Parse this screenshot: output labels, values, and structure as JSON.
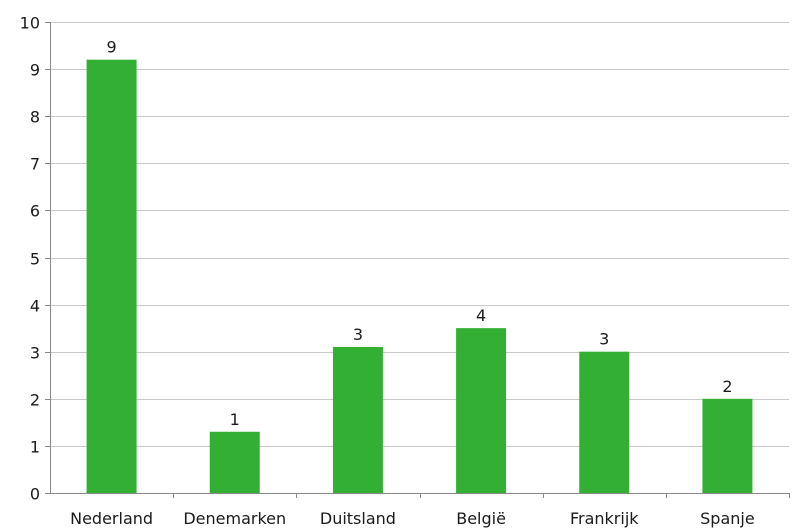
{
  "chart_data": {
    "type": "bar",
    "categories": [
      "Nederland",
      "Denemarken",
      "Duitsland",
      "België",
      "Frankrijk",
      "Spanje"
    ],
    "values": [
      9.2,
      1.3,
      3.1,
      3.5,
      3.0,
      2.0
    ],
    "data_labels": [
      "9",
      "1",
      "3",
      "4",
      "3",
      "2"
    ],
    "ylim": [
      0,
      10
    ],
    "yticks": [
      0,
      1,
      2,
      3,
      4,
      5,
      6,
      7,
      8,
      9,
      10
    ],
    "ytick_labels": [
      "0",
      "1",
      "2",
      "3",
      "4",
      "5",
      "6",
      "7",
      "8",
      "9",
      "10"
    ],
    "grid": true,
    "bar_color": "#33b034",
    "title": "",
    "xlabel": "",
    "ylabel": ""
  }
}
